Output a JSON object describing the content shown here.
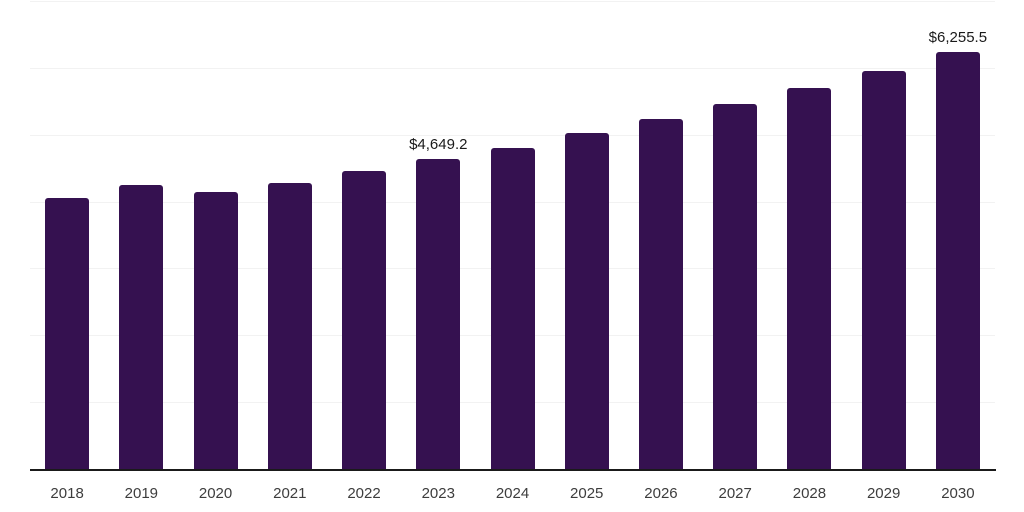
{
  "chart_data": {
    "type": "bar",
    "title": "",
    "xlabel": "",
    "ylabel": "",
    "categories": [
      "2018",
      "2019",
      "2020",
      "2021",
      "2022",
      "2023",
      "2024",
      "2025",
      "2026",
      "2027",
      "2028",
      "2029",
      "2030"
    ],
    "values": [
      4075,
      4270,
      4165,
      4295,
      4465,
      4649.2,
      4820,
      5045,
      5245,
      5480,
      5715,
      5975,
      6255.5
    ],
    "annotations": [
      {
        "category": "2023",
        "text": "$4,649.2"
      },
      {
        "category": "2030",
        "text": "$6,255.5"
      }
    ],
    "ylim": [
      0,
      7000
    ],
    "grid_step": 1000,
    "grid": "horizontal-only",
    "legend_position": "none",
    "bar_color": "#351150",
    "axis_color": "#1a1a1a",
    "gridline_color": "#f2f2f2",
    "tick_label_color": "#3d3d3d",
    "data_label_color": "#1a1a1a"
  }
}
